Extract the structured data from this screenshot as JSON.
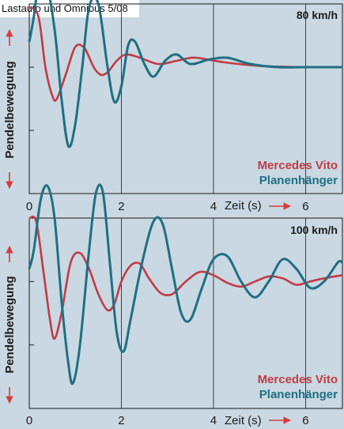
{
  "source_label": "Lastauto und Omnibus 5/08",
  "colors": {
    "mercedes": "#c23b45",
    "planen": "#1f6f82",
    "arrow": "#d63d3d",
    "background": "#c9d8e2",
    "grid": "#1a1a1a"
  },
  "chart_data": [
    {
      "type": "line",
      "title": "80 km/h",
      "ylabel": "Pendelbewegung",
      "xlabel": "Zeit (s)",
      "xlim": [
        0,
        6.8
      ],
      "ylim": [
        -2,
        1
      ],
      "xticks": [
        "0",
        "2",
        "4",
        "6"
      ],
      "grid": true,
      "legend_position": "bottom-right",
      "series": [
        {
          "name": "Mercedes Vito",
          "color": "#c23b45",
          "x": [
            0,
            0.2,
            0.35,
            0.5,
            0.6,
            0.8,
            1.0,
            1.2,
            1.4,
            1.55,
            1.7,
            1.9,
            2.1,
            2.4,
            2.8,
            3.2,
            3.6,
            4.2,
            5,
            6,
            6.8
          ],
          "y": [
            0.95,
            0.8,
            0.0,
            -0.45,
            -0.5,
            -0.1,
            0.32,
            0.3,
            0.0,
            -0.12,
            -0.08,
            0.1,
            0.2,
            0.15,
            0.05,
            0.1,
            0.15,
            0.08,
            0.02,
            0,
            0
          ]
        },
        {
          "name": "Planenhänger",
          "color": "#1f6f82",
          "x": [
            0,
            0.1,
            0.2,
            0.35,
            0.55,
            0.7,
            0.85,
            1.0,
            1.15,
            1.3,
            1.5,
            1.7,
            1.85,
            2.0,
            2.15,
            2.3,
            2.5,
            2.7,
            2.95,
            3.2,
            3.5,
            3.9,
            4.3,
            4.8,
            5.4,
            6,
            6.8
          ],
          "y": [
            0.4,
            0.8,
            1.3,
            1.4,
            0.6,
            -0.5,
            -1.25,
            -0.9,
            0.0,
            0.95,
            1.0,
            0.0,
            -0.55,
            -0.3,
            0.35,
            0.4,
            0.05,
            -0.15,
            0.1,
            0.2,
            0.05,
            0.12,
            0.15,
            0.05,
            0,
            0,
            0
          ]
        }
      ]
    },
    {
      "type": "line",
      "title": "100 km/h",
      "ylabel": "Pendelbewegung",
      "xlabel": "Zeit (s)",
      "xlim": [
        0,
        6.8
      ],
      "ylim": [
        -2,
        1
      ],
      "xticks": [
        "0",
        "2",
        "4",
        "6"
      ],
      "grid": true,
      "legend_position": "bottom-right",
      "series": [
        {
          "name": "Mercedes Vito",
          "color": "#c23b45",
          "x": [
            0,
            0.15,
            0.3,
            0.45,
            0.55,
            0.7,
            0.9,
            1.1,
            1.3,
            1.5,
            1.7,
            1.85,
            2.0,
            2.2,
            2.4,
            2.6,
            2.85,
            3.1,
            3.4,
            3.7,
            4.0,
            4.3,
            4.6,
            4.9,
            5.2,
            5.5,
            5.8,
            6.1,
            6.4,
            6.8
          ],
          "y": [
            1.0,
            0.95,
            0.2,
            -0.6,
            -0.9,
            -0.5,
            0.3,
            0.45,
            0.2,
            -0.2,
            -0.45,
            -0.35,
            0.0,
            0.25,
            0.28,
            0.05,
            -0.18,
            -0.2,
            0.0,
            0.15,
            0.1,
            -0.02,
            -0.08,
            0.0,
            0.08,
            0.05,
            -0.05,
            0.0,
            0.05,
            0.1
          ]
        },
        {
          "name": "Planenhänger",
          "color": "#1f6f82",
          "x": [
            0,
            0.1,
            0.25,
            0.4,
            0.55,
            0.7,
            0.85,
            0.95,
            1.1,
            1.3,
            1.45,
            1.6,
            1.75,
            1.9,
            2.05,
            2.2,
            2.45,
            2.7,
            2.9,
            3.1,
            3.3,
            3.5,
            3.75,
            4.0,
            4.3,
            4.6,
            4.9,
            5.2,
            5.5,
            5.8,
            6.1,
            6.4,
            6.7,
            6.8
          ],
          "y": [
            0.2,
            0.5,
            1.3,
            1.5,
            1.0,
            -0.3,
            -1.3,
            -1.6,
            -1.0,
            0.5,
            1.4,
            1.4,
            0.3,
            -0.8,
            -1.1,
            -0.6,
            0.3,
            0.95,
            0.9,
            0.2,
            -0.5,
            -0.6,
            -0.1,
            0.35,
            0.4,
            0.0,
            -0.25,
            0.0,
            0.35,
            0.2,
            -0.1,
            0.0,
            0.3,
            0.3
          ]
        }
      ]
    }
  ]
}
